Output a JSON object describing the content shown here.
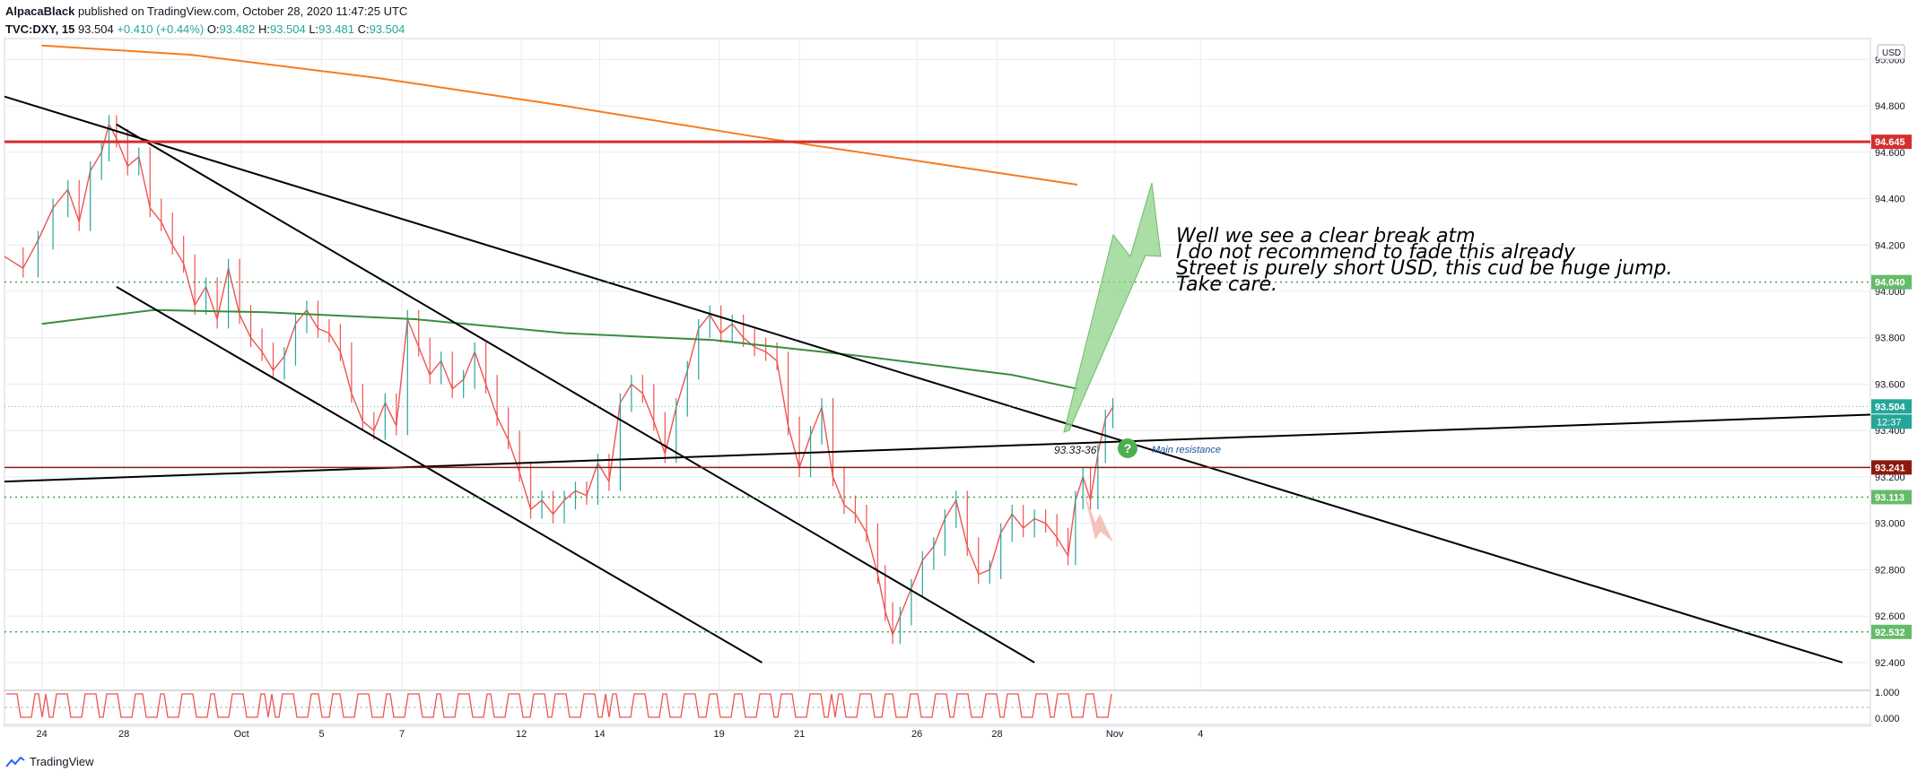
{
  "header": {
    "author": "AlpacaBlack",
    "published": "published on TradingView.com, October 28, 2020 11:47:25 UTC",
    "symbol": "TVC:DXY, 15",
    "last": "93.504",
    "change": "+0.410 (+0.44%)",
    "o_label": "O:",
    "o_val": "93.482",
    "h_label": "H:",
    "h_val": "93.504",
    "l_label": "L:",
    "l_val": "93.481",
    "c_label": "C:",
    "c_val": "93.504"
  },
  "footer": {
    "brand": "TradingView"
  },
  "colors": {
    "up": "#26a69a",
    "down": "#ef5350",
    "ma_orange": "#f57c1f",
    "ma_green": "#388e3c",
    "resistance_red": "#d32f2f",
    "level_brown": "#8b1a10",
    "dotted_green": "#43a047",
    "arrow_green": "#8fd18a",
    "arrow_pink": "#f4b7b0",
    "grid": "#e8ecf2",
    "axis_text": "#131722"
  },
  "chart_data": [
    {
      "type": "line",
      "title": "TVC:DXY, 15",
      "x": [
        "24",
        "28",
        "Oct",
        "5",
        "7",
        "12",
        "14",
        "19",
        "21",
        "26",
        "28",
        "Nov",
        "4"
      ],
      "ylim": [
        92.28,
        95.09
      ],
      "yunit": "USD",
      "y_ticks": [
        "95.000",
        "94.800",
        "94.600",
        "94.400",
        "94.200",
        "94.000",
        "93.800",
        "93.600",
        "93.400",
        "93.200",
        "93.000",
        "92.800",
        "92.600",
        "92.400"
      ],
      "price_labels": [
        "94.645",
        "94.040",
        "93.504",
        "12:37",
        "93.241",
        "93.113",
        "92.532"
      ],
      "price_levels": [
        94.645,
        94.04,
        93.504,
        93.241,
        93.113,
        92.532
      ],
      "price_path": [
        [
          0.0,
          94.15
        ],
        [
          0.01,
          94.1
        ],
        [
          0.018,
          94.22
        ],
        [
          0.026,
          94.36
        ],
        [
          0.034,
          94.44
        ],
        [
          0.04,
          94.3
        ],
        [
          0.046,
          94.52
        ],
        [
          0.052,
          94.6
        ],
        [
          0.056,
          94.72
        ],
        [
          0.06,
          94.66
        ],
        [
          0.066,
          94.54
        ],
        [
          0.072,
          94.58
        ],
        [
          0.078,
          94.36
        ],
        [
          0.084,
          94.3
        ],
        [
          0.09,
          94.2
        ],
        [
          0.096,
          94.12
        ],
        [
          0.102,
          93.94
        ],
        [
          0.108,
          94.02
        ],
        [
          0.114,
          93.88
        ],
        [
          0.12,
          94.1
        ],
        [
          0.126,
          93.9
        ],
        [
          0.132,
          93.8
        ],
        [
          0.138,
          93.74
        ],
        [
          0.144,
          93.66
        ],
        [
          0.15,
          93.72
        ],
        [
          0.156,
          93.86
        ],
        [
          0.162,
          93.92
        ],
        [
          0.168,
          93.84
        ],
        [
          0.174,
          93.82
        ],
        [
          0.18,
          93.74
        ],
        [
          0.186,
          93.56
        ],
        [
          0.192,
          93.44
        ],
        [
          0.198,
          93.4
        ],
        [
          0.204,
          93.52
        ],
        [
          0.21,
          93.42
        ],
        [
          0.216,
          93.88
        ],
        [
          0.222,
          93.76
        ],
        [
          0.228,
          93.64
        ],
        [
          0.234,
          93.7
        ],
        [
          0.24,
          93.58
        ],
        [
          0.246,
          93.62
        ],
        [
          0.252,
          93.74
        ],
        [
          0.258,
          93.6
        ],
        [
          0.264,
          93.46
        ],
        [
          0.27,
          93.36
        ],
        [
          0.276,
          93.22
        ],
        [
          0.282,
          93.06
        ],
        [
          0.288,
          93.1
        ],
        [
          0.294,
          93.04
        ],
        [
          0.3,
          93.1
        ],
        [
          0.306,
          93.14
        ],
        [
          0.312,
          93.12
        ],
        [
          0.318,
          93.26
        ],
        [
          0.324,
          93.18
        ],
        [
          0.33,
          93.52
        ],
        [
          0.336,
          93.6
        ],
        [
          0.342,
          93.56
        ],
        [
          0.348,
          93.44
        ],
        [
          0.354,
          93.3
        ],
        [
          0.36,
          93.5
        ],
        [
          0.366,
          93.66
        ],
        [
          0.372,
          93.84
        ],
        [
          0.378,
          93.9
        ],
        [
          0.384,
          93.82
        ],
        [
          0.39,
          93.86
        ],
        [
          0.396,
          93.8
        ],
        [
          0.402,
          93.76
        ],
        [
          0.408,
          93.74
        ],
        [
          0.414,
          93.7
        ],
        [
          0.42,
          93.42
        ],
        [
          0.426,
          93.24
        ],
        [
          0.432,
          93.38
        ],
        [
          0.438,
          93.5
        ],
        [
          0.444,
          93.2
        ],
        [
          0.45,
          93.08
        ],
        [
          0.456,
          93.04
        ],
        [
          0.462,
          92.96
        ],
        [
          0.468,
          92.78
        ],
        [
          0.472,
          92.62
        ],
        [
          0.476,
          92.52
        ],
        [
          0.48,
          92.6
        ],
        [
          0.486,
          92.72
        ],
        [
          0.492,
          92.84
        ],
        [
          0.498,
          92.9
        ],
        [
          0.504,
          93.02
        ],
        [
          0.51,
          93.1
        ],
        [
          0.516,
          92.9
        ],
        [
          0.522,
          92.78
        ],
        [
          0.528,
          92.8
        ],
        [
          0.534,
          92.96
        ],
        [
          0.54,
          93.04
        ],
        [
          0.546,
          92.98
        ],
        [
          0.552,
          93.02
        ],
        [
          0.558,
          93.0
        ],
        [
          0.564,
          92.94
        ],
        [
          0.57,
          92.86
        ],
        [
          0.574,
          93.1
        ],
        [
          0.578,
          93.2
        ],
        [
          0.582,
          93.1
        ],
        [
          0.586,
          93.3
        ],
        [
          0.59,
          93.45
        ],
        [
          0.594,
          93.5
        ]
      ],
      "moving_averages": [
        {
          "color": "orange",
          "points": [
            [
              0.02,
              95.06
            ],
            [
              0.1,
              95.02
            ],
            [
              0.2,
              94.92
            ],
            [
              0.3,
              94.8
            ],
            [
              0.4,
              94.67
            ],
            [
              0.5,
              94.55
            ],
            [
              0.575,
              94.46
            ]
          ]
        },
        {
          "color": "green",
          "points": [
            [
              0.02,
              93.86
            ],
            [
              0.08,
              93.92
            ],
            [
              0.14,
              93.91
            ],
            [
              0.22,
              93.88
            ],
            [
              0.3,
              93.82
            ],
            [
              0.38,
              93.79
            ],
            [
              0.46,
              93.72
            ],
            [
              0.54,
              93.64
            ],
            [
              0.575,
              93.58
            ]
          ]
        }
      ],
      "trendlines": [
        {
          "from": [
            0.0,
            94.84
          ],
          "to": [
            0.985,
            92.4
          ]
        },
        {
          "from": [
            0.06,
            94.72
          ],
          "to": [
            0.552,
            92.4
          ]
        },
        {
          "from": [
            0.06,
            94.02
          ],
          "to": [
            0.406,
            92.4
          ]
        },
        {
          "from": [
            0.0,
            93.18
          ],
          "to": [
            1.04,
            93.48
          ]
        }
      ],
      "oscillator_ticks": [
        "1.000",
        "0.000"
      ],
      "annotations": {
        "level_label": "93.33-36",
        "resistance_label": "Main resistance",
        "question_mark": "?",
        "comment": [
          "Well we see a clear break atm",
          "I do not recommend to fade this already",
          "Street is purely short USD, this cud be huge jump.",
          "Take care."
        ]
      }
    }
  ]
}
